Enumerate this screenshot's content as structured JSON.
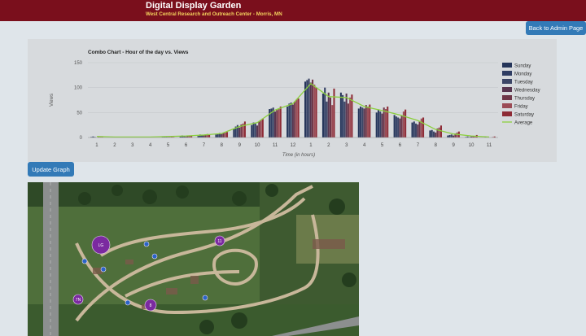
{
  "header": {
    "title": "Digital Display Garden",
    "subtitle": "West Central Research and Outreach Center - Morris, MN"
  },
  "buttons": {
    "back_admin": "Back to Admin Page",
    "update_graph": "Update Graph"
  },
  "colors": {
    "header_bg": "#7a0f1c",
    "subtitle_text": "#f4d35e",
    "button_bg": "#337ab7",
    "page_bg": "#dfe5ea",
    "chart_bg": "#d7dadd",
    "average_line": "#8bcf3e",
    "marker": "#7b2aa0"
  },
  "chart_data": {
    "type": "bar",
    "title": "Combo Chart - Hour of the day vs. Views",
    "xlabel": "Time (in hours)",
    "ylabel": "Views",
    "ylim": [
      0,
      150
    ],
    "yticks": [
      "0",
      "50",
      "100",
      "150"
    ],
    "categories": [
      "1",
      "2",
      "3",
      "4",
      "5",
      "6",
      "7",
      "8",
      "9",
      "10",
      "11",
      "12",
      "1",
      "2",
      "3",
      "4",
      "5",
      "6",
      "7",
      "8",
      "9",
      "10",
      "11"
    ],
    "legend_position": "right",
    "series": [
      {
        "name": "Sunday",
        "color": "#25355a",
        "values": [
          1,
          0,
          0,
          0,
          1,
          2,
          3,
          6,
          18,
          25,
          57,
          62,
          112,
          88,
          90,
          58,
          50,
          45,
          30,
          14,
          4,
          1,
          0
        ]
      },
      {
        "name": "Monday",
        "color": "#2f3d63",
        "values": [
          2,
          0,
          0,
          0,
          2,
          4,
          6,
          8,
          22,
          30,
          58,
          68,
          115,
          100,
          85,
          62,
          55,
          42,
          32,
          15,
          5,
          2,
          1
        ]
      },
      {
        "name": "Tuesday",
        "color": "#3b4566",
        "values": [
          1,
          0,
          0,
          0,
          2,
          3,
          5,
          9,
          25,
          28,
          60,
          70,
          118,
          72,
          72,
          60,
          52,
          40,
          28,
          12,
          6,
          1,
          0
        ]
      },
      {
        "name": "Wednesday",
        "color": "#58354f",
        "values": [
          0,
          0,
          0,
          0,
          1,
          2,
          4,
          7,
          20,
          24,
          52,
          66,
          110,
          90,
          88,
          58,
          48,
          38,
          26,
          10,
          4,
          2,
          0
        ]
      },
      {
        "name": "Thursday",
        "color": "#6e3648",
        "values": [
          1,
          0,
          0,
          0,
          1,
          3,
          6,
          9,
          26,
          32,
          55,
          72,
          116,
          80,
          68,
          65,
          60,
          44,
          33,
          18,
          8,
          3,
          0
        ]
      },
      {
        "name": "Friday",
        "color": "#9b4b55",
        "values": [
          2,
          0,
          0,
          0,
          2,
          4,
          7,
          10,
          28,
          35,
          58,
          76,
          106,
          65,
          80,
          62,
          57,
          52,
          38,
          20,
          10,
          3,
          1
        ]
      },
      {
        "name": "Saturday",
        "color": "#8e2b36",
        "values": [
          1,
          0,
          0,
          0,
          1,
          3,
          5,
          11,
          32,
          38,
          62,
          78,
          100,
          98,
          86,
          66,
          62,
          56,
          40,
          24,
          12,
          5,
          2
        ]
      }
    ],
    "average": {
      "name": "Average",
      "color": "#8bcf3e",
      "values": [
        2,
        1,
        1,
        1,
        2,
        3,
        5,
        8,
        22,
        30,
        55,
        68,
        108,
        82,
        80,
        62,
        54,
        45,
        34,
        16,
        7,
        3,
        1
      ]
    }
  },
  "map": {
    "markers": [
      {
        "label": "LG",
        "r": 11
      },
      {
        "label": "11",
        "r": 6
      },
      {
        "label": "",
        "r": 3
      },
      {
        "label": "",
        "r": 3
      },
      {
        "label": "",
        "r": 3
      },
      {
        "label": "",
        "r": 3
      },
      {
        "label": "7N",
        "r": 6
      },
      {
        "label": "8",
        "r": 7
      },
      {
        "label": "",
        "r": 3
      },
      {
        "label": "",
        "r": 3
      }
    ]
  }
}
